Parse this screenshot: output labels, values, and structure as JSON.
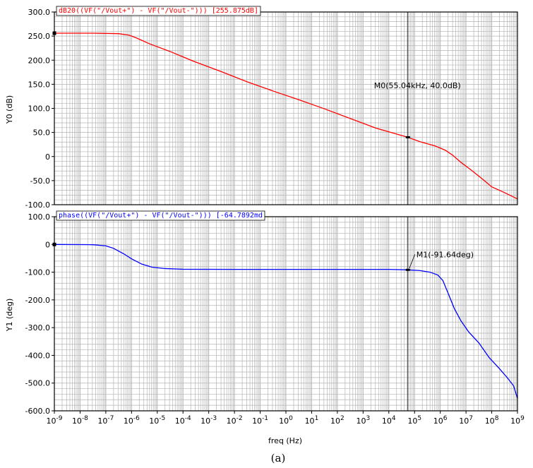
{
  "caption": "(a)",
  "colors": {
    "magnitude": "#ff0000",
    "phase": "#0000ff",
    "grid": "#b4b4b4",
    "frame": "#000000"
  },
  "chart_data": [
    {
      "type": "line",
      "title": "dB20((VF(\"/Vout+\") - VF(\"/Vout-\"))) [255.875dB]",
      "ylabel": "Y0 (dB)",
      "xlabel": "freq (Hz)",
      "xscale": "log",
      "xlim_exp": [
        -9,
        9
      ],
      "ylim": [
        -100,
        300
      ],
      "yticks": [
        300,
        250,
        200,
        150,
        100,
        50,
        0,
        -50,
        -100
      ],
      "ytick_labels": [
        "300.0",
        "250.0",
        "200.0",
        "150.0",
        "100.0",
        "50.0",
        "0",
        "-50.0",
        "-100.0"
      ],
      "grid": true,
      "series": [
        {
          "points": [
            [
              -9,
              256
            ],
            [
              -7.5,
              256
            ],
            [
              -6.5,
              255
            ],
            [
              -6.1,
              252
            ],
            [
              -5.8,
              246
            ],
            [
              -5.3,
              234
            ],
            [
              -4.5,
              218
            ],
            [
              -3.6,
              198
            ],
            [
              -2.5,
              176
            ],
            [
              -1.5,
              155
            ],
            [
              -0.5,
              136
            ],
            [
              0.5,
              118
            ],
            [
              1.5,
              99
            ],
            [
              2.5,
              79
            ],
            [
              3.5,
              59
            ],
            [
              4.74,
              40
            ],
            [
              5.2,
              31
            ],
            [
              5.8,
              22
            ],
            [
              6.2,
              13
            ],
            [
              6.5,
              2
            ],
            [
              6.8,
              -12
            ],
            [
              7.2,
              -28
            ],
            [
              7.6,
              -45
            ],
            [
              8.0,
              -63
            ],
            [
              8.5,
              -75
            ],
            [
              9,
              -88
            ]
          ]
        }
      ],
      "marker": {
        "name": "M0",
        "x_exp": 4.74,
        "y": 40.0,
        "label": "M0(55.04kHz, 40.0dB)"
      }
    },
    {
      "type": "line",
      "title": "phase((VF(\"/Vout+\") - VF(\"/Vout-\"))) [-64.7892md",
      "ylabel": "Y1 (deg)",
      "xlabel": "freq (Hz)",
      "xscale": "log",
      "xlim_exp": [
        -9,
        9
      ],
      "ylim": [
        -600,
        100
      ],
      "yticks": [
        100,
        0,
        -100,
        -200,
        -300,
        -400,
        -500,
        -600
      ],
      "ytick_labels": [
        "100.0",
        "0",
        "-100.0",
        "-200.0",
        "-300.0",
        "-400.0",
        "-500.0",
        "-600.0"
      ],
      "grid": true,
      "series": [
        {
          "points": [
            [
              -9,
              -0.06
            ],
            [
              -8,
              -0.5
            ],
            [
              -7.5,
              -1
            ],
            [
              -7,
              -5
            ],
            [
              -6.7,
              -14
            ],
            [
              -6.3,
              -34
            ],
            [
              -6,
              -52
            ],
            [
              -5.6,
              -71
            ],
            [
              -5.2,
              -82
            ],
            [
              -4.7,
              -87
            ],
            [
              -4,
              -89.5
            ],
            [
              -2,
              -90
            ],
            [
              0,
              -90
            ],
            [
              2,
              -90
            ],
            [
              4,
              -90
            ],
            [
              4.74,
              -91.64
            ],
            [
              5.2,
              -94
            ],
            [
              5.6,
              -100
            ],
            [
              5.9,
              -110
            ],
            [
              6.1,
              -130
            ],
            [
              6.3,
              -175
            ],
            [
              6.55,
              -232
            ],
            [
              6.8,
              -275
            ],
            [
              7.1,
              -315
            ],
            [
              7.5,
              -355
            ],
            [
              7.9,
              -408
            ],
            [
              8.3,
              -448
            ],
            [
              8.6,
              -480
            ],
            [
              8.85,
              -510
            ],
            [
              9,
              -555
            ]
          ]
        }
      ],
      "marker": {
        "name": "M1",
        "x_exp": 4.74,
        "y": -91.64,
        "label": "M1(-91.64deg)"
      }
    }
  ]
}
